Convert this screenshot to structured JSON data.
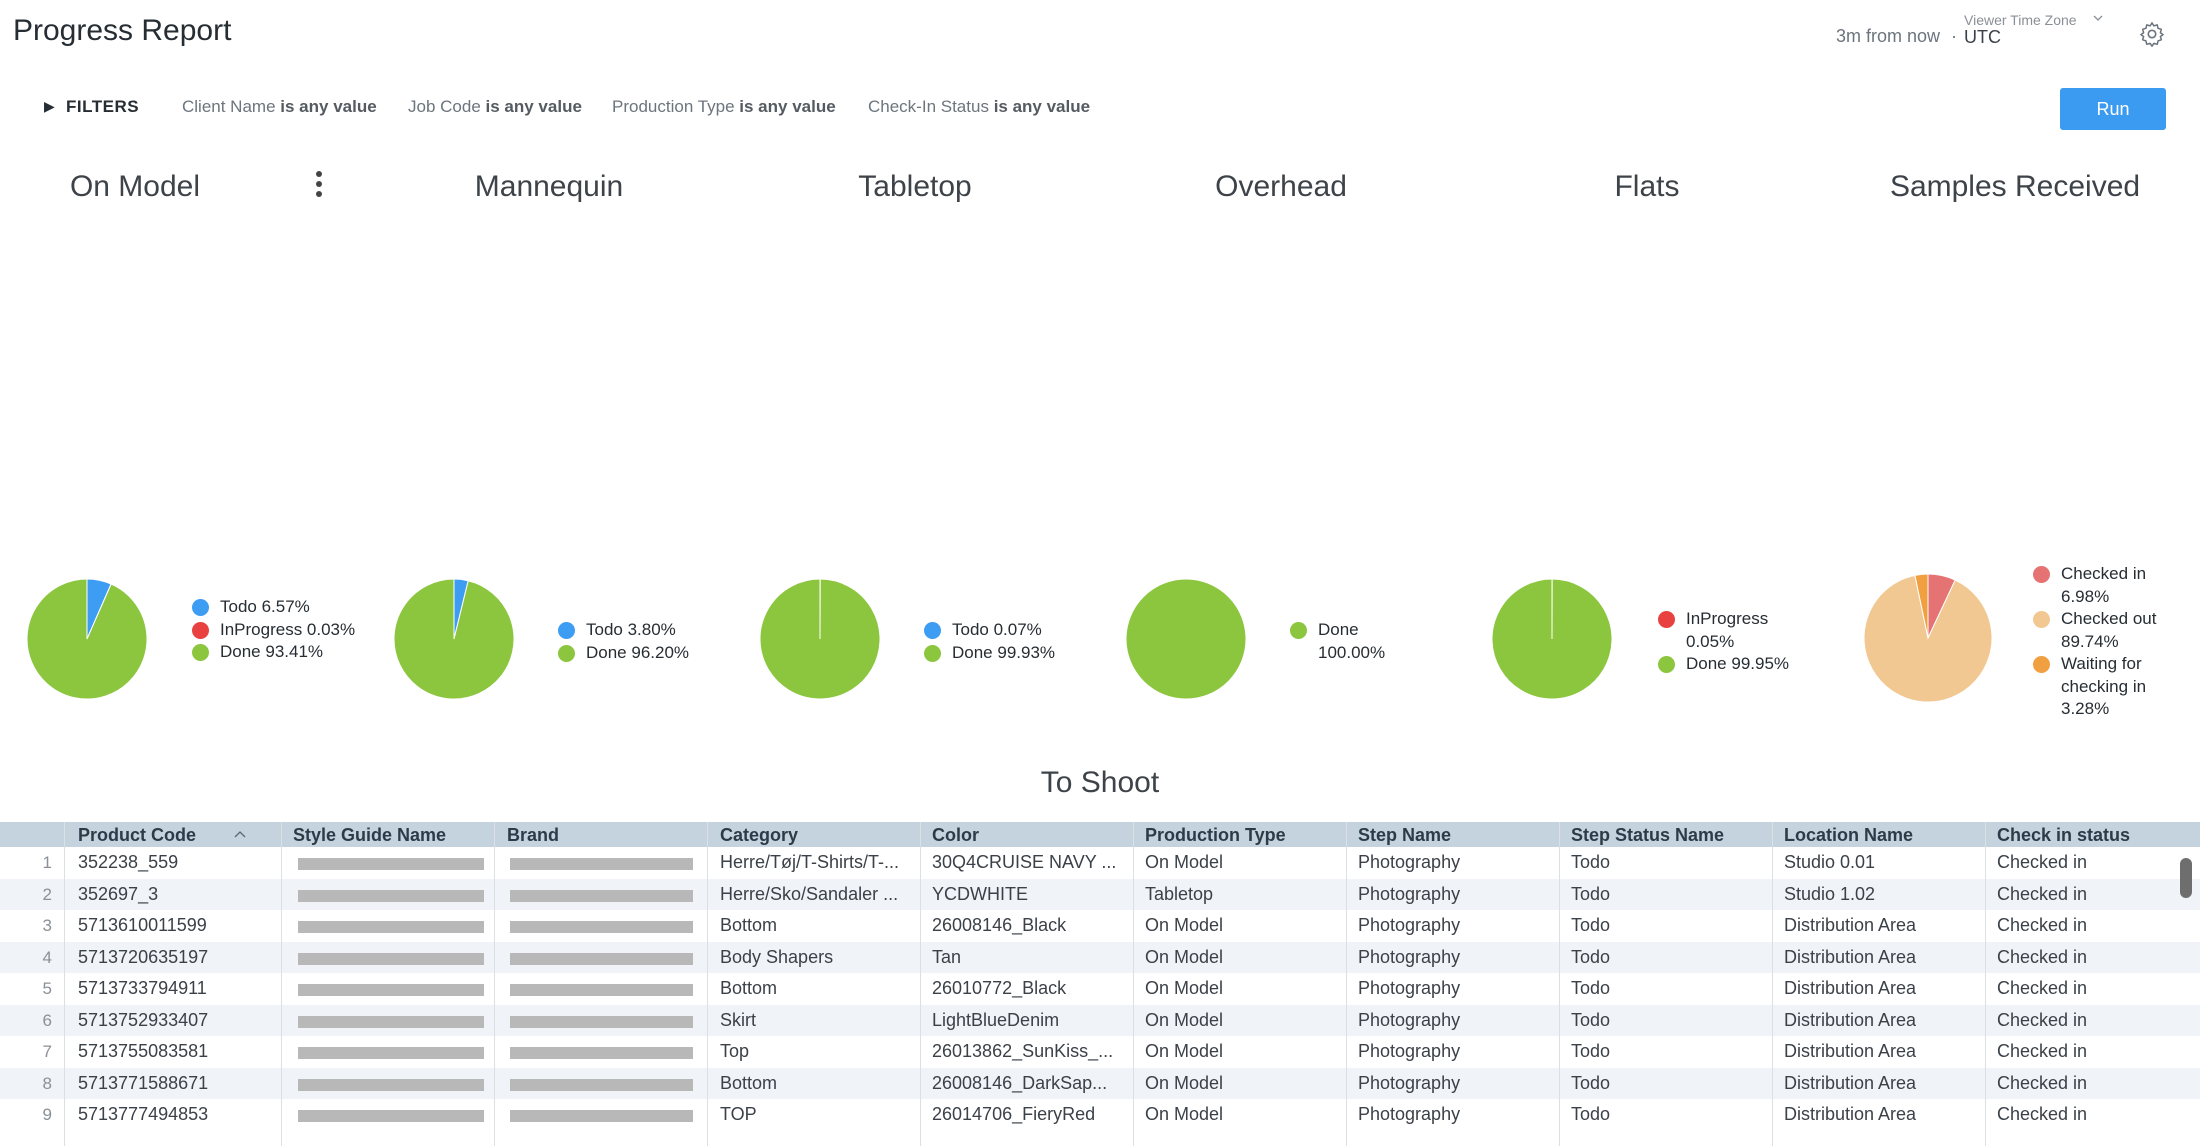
{
  "header": {
    "title": "Progress Report",
    "refresh_info": "3m from now",
    "separator": "·",
    "timezone_label": "Viewer Time Zone",
    "timezone_value": "UTC"
  },
  "filters": {
    "label": "FILTERS",
    "items": [
      {
        "field": "Client Name",
        "condition": "is any value"
      },
      {
        "field": "Job Code",
        "condition": "is any value"
      },
      {
        "field": "Production Type",
        "condition": "is any value"
      },
      {
        "field": "Check-In Status",
        "condition": "is any value"
      }
    ],
    "run_label": "Run"
  },
  "chart_data": [
    {
      "type": "pie",
      "title": "On Model",
      "series": [
        {
          "name": "Todo",
          "value": 6.57,
          "label": "Todo 6.57%",
          "color": "#3d9df2"
        },
        {
          "name": "InProgress",
          "value": 0.03,
          "label": "InProgress 0.03%",
          "color": "#e8413f"
        },
        {
          "name": "Done",
          "value": 93.41,
          "label": "Done 93.41%",
          "color": "#8cc63f"
        }
      ]
    },
    {
      "type": "pie",
      "title": "Mannequin",
      "series": [
        {
          "name": "Todo",
          "value": 3.8,
          "label": "Todo 3.80%",
          "color": "#3d9df2"
        },
        {
          "name": "Done",
          "value": 96.2,
          "label": "Done 96.20%",
          "color": "#8cc63f"
        }
      ]
    },
    {
      "type": "pie",
      "title": "Tabletop",
      "series": [
        {
          "name": "Todo",
          "value": 0.07,
          "label": "Todo 0.07%",
          "color": "#3d9df2"
        },
        {
          "name": "Done",
          "value": 99.93,
          "label": "Done 99.93%",
          "color": "#8cc63f"
        }
      ]
    },
    {
      "type": "pie",
      "title": "Overhead",
      "series": [
        {
          "name": "Done",
          "value": 100.0,
          "label": "Done 100.00%",
          "color": "#8cc63f"
        }
      ]
    },
    {
      "type": "pie",
      "title": "Flats",
      "series": [
        {
          "name": "InProgress",
          "value": 0.05,
          "label": "InProgress 0.05%",
          "color": "#e8413f"
        },
        {
          "name": "Done",
          "value": 99.95,
          "label": "Done 99.95%",
          "color": "#8cc63f"
        }
      ]
    },
    {
      "type": "pie",
      "title": "Samples Received",
      "series": [
        {
          "name": "Checked in",
          "value": 6.98,
          "label": "Checked in 6.98%",
          "color": "#e57373"
        },
        {
          "name": "Checked out",
          "value": 89.74,
          "label": "Checked out 89.74%",
          "color": "#f2c892"
        },
        {
          "name": "Waiting for checking in",
          "value": 3.28,
          "label": "Waiting for checking in 3.28%",
          "color": "#f0a040"
        }
      ]
    }
  ],
  "table": {
    "title": "To Shoot",
    "columns": [
      "Product Code",
      "Style Guide Name",
      "Brand",
      "Category",
      "Color",
      "Production Type",
      "Step Name",
      "Step Status Name",
      "Location Name",
      "Check in status"
    ],
    "rows": [
      {
        "n": "1",
        "code": "352238_559",
        "category": "Herre/Tøj/T-Shirts/T-...",
        "color": "30Q4CRUISE NAVY ...",
        "ptype": "On Model",
        "step": "Photography",
        "status": "Todo",
        "location": "Studio 0.01",
        "checkin": "Checked in"
      },
      {
        "n": "2",
        "code": "352697_3",
        "category": "Herre/Sko/Sandaler ...",
        "color": "YCDWHITE",
        "ptype": "Tabletop",
        "step": "Photography",
        "status": "Todo",
        "location": "Studio 1.02",
        "checkin": "Checked in"
      },
      {
        "n": "3",
        "code": "5713610011599",
        "category": "Bottom",
        "color": "26008146_Black",
        "ptype": "On Model",
        "step": "Photography",
        "status": "Todo",
        "location": "Distribution Area",
        "checkin": "Checked in"
      },
      {
        "n": "4",
        "code": "5713720635197",
        "category": "Body Shapers",
        "color": "Tan",
        "ptype": "On Model",
        "step": "Photography",
        "status": "Todo",
        "location": "Distribution Area",
        "checkin": "Checked in"
      },
      {
        "n": "5",
        "code": "5713733794911",
        "category": "Bottom",
        "color": "26010772_Black",
        "ptype": "On Model",
        "step": "Photography",
        "status": "Todo",
        "location": "Distribution Area",
        "checkin": "Checked in"
      },
      {
        "n": "6",
        "code": "5713752933407",
        "category": "Skirt",
        "color": "LightBlueDenim",
        "ptype": "On Model",
        "step": "Photography",
        "status": "Todo",
        "location": "Distribution Area",
        "checkin": "Checked in"
      },
      {
        "n": "7",
        "code": "5713755083581",
        "category": "Top",
        "color": "26013862_SunKiss_...",
        "ptype": "On Model",
        "step": "Photography",
        "status": "Todo",
        "location": "Distribution Area",
        "checkin": "Checked in"
      },
      {
        "n": "8",
        "code": "5713771588671",
        "category": "Bottom",
        "color": "26008146_DarkSap...",
        "ptype": "On Model",
        "step": "Photography",
        "status": "Todo",
        "location": "Distribution Area",
        "checkin": "Checked in"
      },
      {
        "n": "9",
        "code": "5713777494853",
        "category": "TOP",
        "color": "26014706_FieryRed",
        "ptype": "On Model",
        "step": "Photography",
        "status": "Todo",
        "location": "Distribution Area",
        "checkin": "Checked in"
      }
    ]
  }
}
